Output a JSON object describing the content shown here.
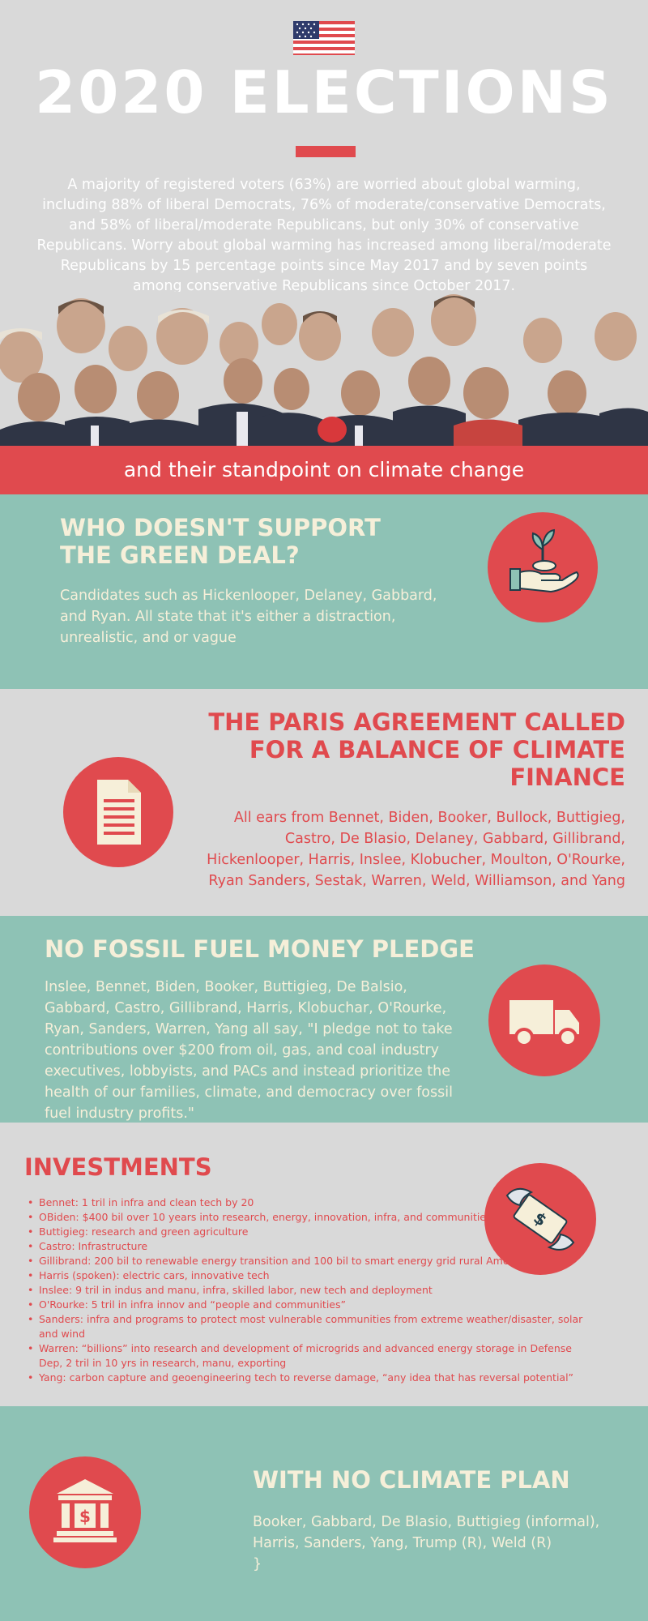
{
  "header": {
    "title": "2020 ELECTIONS",
    "intro": "A majority of registered voters (63%) are worried about global warming, including 88% of liberal Democrats, 76% of moderate/conservative Democrats, and 58% of liberal/moderate Republicans, but only 30% of conservative Republicans. Worry about global warming has increased among liberal/moderate Republicans by 15 percentage points since May 2017 and by seven points among conservative Republicans since October 2017."
  },
  "banner": {
    "text": "and their standpoint on climate change"
  },
  "section_green_deal": {
    "title": "WHO DOESN'T SUPPORT THE GREEN DEAL?",
    "body": "Candidates such as Hickenlooper, Delaney, Gabbard, and Ryan. All state that it's either a distraction, unrealistic, and or vague",
    "icon": "plant-in-hand-icon"
  },
  "section_paris": {
    "title_line1": "THE PARIS AGREEMENT CALLED",
    "title_line2": "FOR A BALANCE OF CLIMATE",
    "title_line3": "FINANCE",
    "body": "All ears from Bennet, Biden, Booker, Bullock, Buttigieg, Castro, De Blasio, Delaney, Gabbard, Gillibrand, Hickenlooper, Harris, Inslee, Klobucher, Moulton, O'Rourke, Ryan Sanders, Sestak, Warren, Weld, Williamson, and Yang",
    "icon": "document-icon"
  },
  "section_fossil": {
    "title": "NO FOSSIL FUEL MONEY PLEDGE",
    "body": "Inslee, Bennet, Biden, Booker, Buttigieg, De Balsio, Gabbard, Castro, Gillibrand, Harris, Klobuchar, O'Rourke, Ryan, Sanders, Warren, Yang all say, \"I pledge not to take contributions over $200 from oil, gas, and coal industry executives, lobbyists, and PACs and instead prioritize the health of our families, climate, and democracy over fossil fuel industry profits.\"",
    "icon": "truck-icon"
  },
  "section_investments": {
    "title": "INVESTMENTS",
    "icon": "flying-money-icon",
    "items": [
      "Bennet: 1 tril in infra and clean tech by 20",
      "OBiden: $400 bil over 10 years into research, energy, innovation, infra, and communities.",
      "Buttigieg: research and green agriculture",
      "Castro: Infrastructure",
      "Gillibrand: 200 bil to renewable energy transition and 100 bil to smart energy grid rural America",
      "Harris (spoken): electric cars, innovative tech",
      "Inslee: 9 tril in indus and manu, infra, skilled labor, new tech and deployment",
      "O'Rourke: 5 tril in infra innov and “people and communities”",
      "Sanders: infra and programs to protect most vulnerable communities from extreme weather/disaster, solar and wind",
      "Warren: “billions” into research and development of microgrids and advanced energy storage in Defense Dep, 2 tril in 10 yrs in research, manu, exporting",
      "Yang: carbon capture and geoengineering tech to reverse damage, “any idea that has reversal potential”"
    ]
  },
  "section_no_plan": {
    "title": "WITH NO CLIMATE PLAN",
    "body_line1": "Booker, Gabbard, De Blasio, Buttigieg (informal),",
    "body_line2": "Harris, Sanders, Yang, Trump (R), Weld (R)",
    "icon": "bank-icon"
  },
  "colors": {
    "red": "#e04a4e",
    "teal": "#8ec2b5",
    "grey": "#d9d9d9",
    "cream": "#f6efd9"
  }
}
